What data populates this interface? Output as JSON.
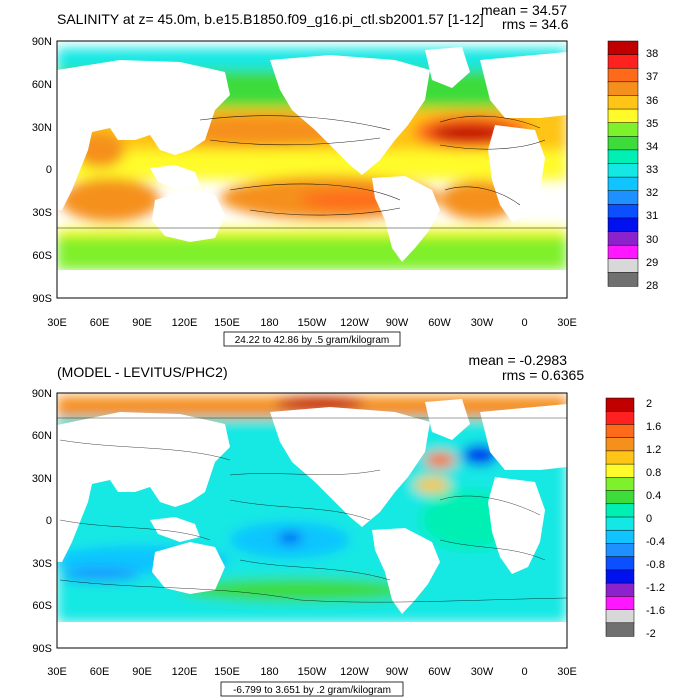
{
  "panels": [
    {
      "title": "SALINITY at z=  45.0m, b.e15.B1850.f09_g16.pi_ctl.sb2001.57 [1-12]",
      "mean": "mean = 34.57",
      "rms": "rms = 34.6",
      "contour_info": "24.22 to 42.86 by .5 gram/kilogram",
      "lat_labels": [
        "90N",
        "60N",
        "30N",
        "0",
        "30S",
        "60S",
        "90S"
      ],
      "lon_labels": [
        "30E",
        "60E",
        "90E",
        "120E",
        "150E",
        "180",
        "150W",
        "120W",
        "90W",
        "60W",
        "30W",
        "0",
        "30E"
      ],
      "colorbar_labels": [
        "38",
        "37",
        "36",
        "35",
        "34",
        "33",
        "32",
        "31",
        "30",
        "29",
        "28"
      ],
      "colorbar_colors": [
        "#c00000",
        "#ff2020",
        "#ff6a1a",
        "#f5901c",
        "#ffc418",
        "#fffb2a",
        "#7ff02c",
        "#3ddc3b",
        "#00f0b4",
        "#13e8e4",
        "#0fc4ff",
        "#1e90ff",
        "#0a50ff",
        "#0010ee",
        "#8b22cc",
        "#ff17ff",
        "#d8d8d8",
        "#707070"
      ]
    },
    {
      "title": "(MODEL - LEVITUS/PHC2)",
      "mean": "mean = -0.2983",
      "rms": "rms = 0.6365",
      "contour_info": "-6.799 to 3.651 by .2 gram/kilogram",
      "lat_labels": [
        "90N",
        "60N",
        "30N",
        "0",
        "30S",
        "60S",
        "90S"
      ],
      "lon_labels": [
        "30E",
        "60E",
        "90E",
        "120E",
        "150E",
        "180",
        "150W",
        "120W",
        "90W",
        "60W",
        "30W",
        "0",
        "30E"
      ],
      "colorbar_labels": [
        "2",
        "1.6",
        "1.2",
        "0.8",
        "0.4",
        "0",
        "-0.4",
        "-0.8",
        "-1.2",
        "-1.6",
        "-2"
      ],
      "colorbar_colors": [
        "#c00000",
        "#ff2020",
        "#ff6a1a",
        "#f5901c",
        "#ffc418",
        "#fffb2a",
        "#7ff02c",
        "#3ddc3b",
        "#00f0b4",
        "#13e8e4",
        "#0fc4ff",
        "#1e90ff",
        "#0a50ff",
        "#0010ee",
        "#8b22cc",
        "#ff17ff",
        "#d8d8d8",
        "#707070"
      ]
    }
  ]
}
